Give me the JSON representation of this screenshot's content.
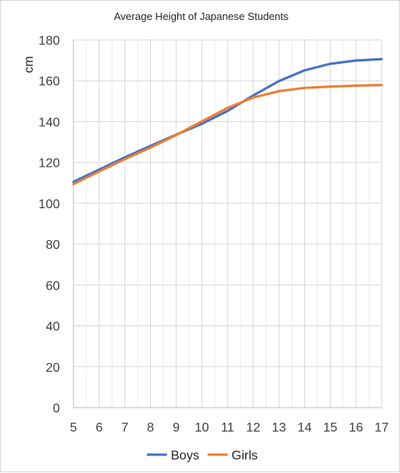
{
  "chart_data": {
    "type": "line",
    "title": "Average Height of Japanese Students",
    "xlabel": "",
    "ylabel": "cm",
    "x": [
      5,
      6,
      7,
      8,
      9,
      10,
      11,
      12,
      13,
      14,
      15,
      16,
      17
    ],
    "xlim": [
      5,
      17
    ],
    "ylim": [
      0,
      180
    ],
    "yticks": [
      0,
      20,
      40,
      60,
      80,
      100,
      120,
      140,
      160,
      180
    ],
    "grid": true,
    "legend_position": "bottom",
    "series": [
      {
        "name": "Boys",
        "color": "#4472c4",
        "values": [
          110.5,
          116.5,
          122.5,
          128.1,
          133.6,
          138.9,
          145.2,
          152.8,
          159.8,
          165.1,
          168.3,
          169.9,
          170.6
        ]
      },
      {
        "name": "Girls",
        "color": "#ed7d31",
        "values": [
          109.4,
          115.6,
          121.6,
          127.3,
          133.4,
          140.1,
          146.7,
          151.8,
          154.9,
          156.5,
          157.1,
          157.6,
          157.9
        ]
      }
    ]
  }
}
